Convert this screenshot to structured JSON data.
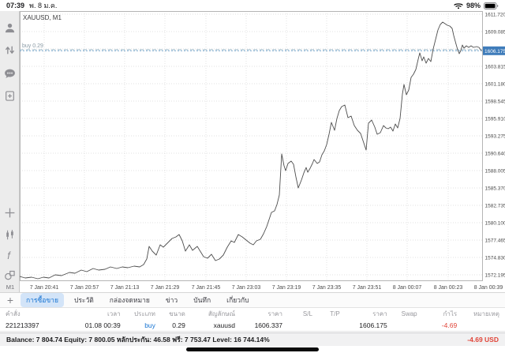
{
  "status_bar": {
    "time": "07:39",
    "date": "พ. 8 ม.ค.",
    "battery_percent": "98%"
  },
  "sidebar": {
    "top_icons": [
      "account-icon",
      "deals-arrows-icon",
      "chat-icon",
      "new-order-icon"
    ],
    "tool_icons": [
      "crosshair-icon",
      "candlestick-icon",
      "indicator-f-icon",
      "objects-icon"
    ],
    "timeframe_label": "M1"
  },
  "tab_bar": {
    "plus_glyph": "+",
    "tabs": [
      "การซื้อขาย",
      "ประวัติ",
      "กล่องจดหมาย",
      "ข่าว",
      "บันทึก",
      "เกี่ยวกับ"
    ],
    "selected_index": 0
  },
  "positions_table": {
    "headers": [
      "คำสั่ง",
      "เวลา",
      "ประเภท",
      "ขนาด",
      "สัญลักษณ์",
      "ราคา",
      "S/L",
      "T/P",
      "ราคา",
      "Swap",
      "กำไร",
      "หมายเหตุ"
    ],
    "rows": [
      [
        "221213397",
        "01.08 00:39",
        "buy",
        "0.29",
        "xauusd",
        "1606.337",
        "",
        "",
        "1606.175",
        "",
        "-4.69",
        ""
      ]
    ]
  },
  "account_bar": {
    "segments": [
      {
        "label": "Balance:",
        "value": "7 804.74"
      },
      {
        "label": "Equity:",
        "value": "7 800.05"
      },
      {
        "label": "หลักประกัน:",
        "value": "46.58"
      },
      {
        "label": "ฟรี:",
        "value": "7 753.47"
      },
      {
        "label": "Level:",
        "value": "16 744.14%"
      }
    ],
    "profit": "-4.69",
    "currency": "USD"
  },
  "chart_data": {
    "type": "line",
    "title": "XAUUSD, M1",
    "symbol": "XAUUSD",
    "timeframe": "M1",
    "ylim": [
      1571.24,
      1612.2
    ],
    "grid": true,
    "colors": {
      "line": "#4d4d4d",
      "grid": "#d8d8d8",
      "axis_text": "#4a4a4a",
      "price_badge": "#3f7cba",
      "buy_line": "#9fbccd",
      "current_line": "#74a3cc"
    },
    "current_price": {
      "value": 1606.175,
      "label": "1606.175"
    },
    "buy_line": {
      "price": 1606.337,
      "label": "buy 0.29"
    },
    "y_ticks": [
      {
        "v": 1611.72,
        "label": "1611.720"
      },
      {
        "v": 1609.085,
        "label": "1609.085"
      },
      {
        "v": 1606.45,
        "label": ""
      },
      {
        "v": 1603.815,
        "label": "1603.815"
      },
      {
        "v": 1601.18,
        "label": "1601.180"
      },
      {
        "v": 1598.545,
        "label": "1598.545"
      },
      {
        "v": 1595.91,
        "label": "1595.910"
      },
      {
        "v": 1593.275,
        "label": "1593.275"
      },
      {
        "v": 1590.64,
        "label": "1590.640"
      },
      {
        "v": 1588.005,
        "label": "1588.005"
      },
      {
        "v": 1585.37,
        "label": "1585.370"
      },
      {
        "v": 1582.735,
        "label": "1582.735"
      },
      {
        "v": 1580.1,
        "label": "1580.100"
      },
      {
        "v": 1577.465,
        "label": "1577.465"
      },
      {
        "v": 1574.83,
        "label": "1574.830"
      },
      {
        "v": 1572.195,
        "label": "1572.195"
      }
    ],
    "x_ticks": [
      {
        "f": 0.0528,
        "label": "7 Jan 20:41"
      },
      {
        "f": 0.1397,
        "label": "7 Jan 20:57"
      },
      {
        "f": 0.2266,
        "label": "7 Jan 21:13"
      },
      {
        "f": 0.3135,
        "label": "7 Jan 21:29"
      },
      {
        "f": 0.402,
        "label": "7 Jan 21:45"
      },
      {
        "f": 0.4889,
        "label": "7 Jan 23:03"
      },
      {
        "f": 0.5758,
        "label": "7 Jan 23:19"
      },
      {
        "f": 0.6627,
        "label": "7 Jan 23:35"
      },
      {
        "f": 0.7496,
        "label": "7 Jan 23:51"
      },
      {
        "f": 0.8365,
        "label": "8 Jan 00:07"
      },
      {
        "f": 0.925,
        "label": "8 Jan 00:23"
      },
      {
        "f": 1.0119,
        "label": "8 Jan 00:39"
      }
    ],
    "series": [
      {
        "name": "XAUUSD bid",
        "points": [
          [
            0.0,
            1571.96
          ],
          [
            0.0119,
            1571.72
          ],
          [
            0.0256,
            1571.84
          ],
          [
            0.0392,
            1571.6
          ],
          [
            0.0511,
            1571.84
          ],
          [
            0.063,
            1571.72
          ],
          [
            0.0767,
            1572.2
          ],
          [
            0.0903,
            1572.08
          ],
          [
            0.1073,
            1572.56
          ],
          [
            0.1193,
            1572.44
          ],
          [
            0.1329,
            1572.92
          ],
          [
            0.1448,
            1572.68
          ],
          [
            0.1584,
            1573.16
          ],
          [
            0.1704,
            1572.92
          ],
          [
            0.184,
            1573.04
          ],
          [
            0.1959,
            1573.4
          ],
          [
            0.2096,
            1573.16
          ],
          [
            0.2215,
            1573.4
          ],
          [
            0.2334,
            1573.28
          ],
          [
            0.247,
            1573.52
          ],
          [
            0.259,
            1573.4
          ],
          [
            0.2675,
            1573.76
          ],
          [
            0.2743,
            1574.59
          ],
          [
            0.2794,
            1576.51
          ],
          [
            0.2862,
            1575.79
          ],
          [
            0.2947,
            1575.19
          ],
          [
            0.3032,
            1576.75
          ],
          [
            0.31,
            1576.39
          ],
          [
            0.3185,
            1576.99
          ],
          [
            0.3288,
            1577.71
          ],
          [
            0.3373,
            1577.95
          ],
          [
            0.3441,
            1578.31
          ],
          [
            0.3509,
            1577.35
          ],
          [
            0.3577,
            1575.79
          ],
          [
            0.3663,
            1576.75
          ],
          [
            0.3731,
            1575.91
          ],
          [
            0.3833,
            1576.51
          ],
          [
            0.3969,
            1574.95
          ],
          [
            0.4054,
            1574.71
          ],
          [
            0.4139,
            1575.31
          ],
          [
            0.4225,
            1574.35
          ],
          [
            0.431,
            1574.59
          ],
          [
            0.4395,
            1575.19
          ],
          [
            0.448,
            1576.39
          ],
          [
            0.4565,
            1577.35
          ],
          [
            0.4634,
            1577.11
          ],
          [
            0.4719,
            1578.31
          ],
          [
            0.4804,
            1577.95
          ],
          [
            0.4889,
            1577.47
          ],
          [
            0.4974,
            1576.99
          ],
          [
            0.5043,
            1576.75
          ],
          [
            0.5111,
            1577.35
          ],
          [
            0.5196,
            1577.59
          ],
          [
            0.5264,
            1578.43
          ],
          [
            0.5332,
            1579.51
          ],
          [
            0.5383,
            1580.58
          ],
          [
            0.5434,
            1581.66
          ],
          [
            0.5502,
            1581.9
          ],
          [
            0.5553,
            1582.86
          ],
          [
            0.5605,
            1584.3
          ],
          [
            0.5656,
            1590.52
          ],
          [
            0.5707,
            1588.72
          ],
          [
            0.5741,
            1588.0
          ],
          [
            0.5792,
            1589.08
          ],
          [
            0.586,
            1589.44
          ],
          [
            0.5911,
            1588.96
          ],
          [
            0.5963,
            1587.05
          ],
          [
            0.6014,
            1585.37
          ],
          [
            0.6082,
            1586.57
          ],
          [
            0.6133,
            1587.64
          ],
          [
            0.6184,
            1588.48
          ],
          [
            0.6218,
            1587.76
          ],
          [
            0.6269,
            1588.36
          ],
          [
            0.632,
            1589.08
          ],
          [
            0.6354,
            1589.68
          ],
          [
            0.6422,
            1589.08
          ],
          [
            0.6474,
            1589.32
          ],
          [
            0.6525,
            1590.4
          ],
          [
            0.6576,
            1591.0
          ],
          [
            0.6627,
            1591.96
          ],
          [
            0.6678,
            1593.52
          ],
          [
            0.6729,
            1595.31
          ],
          [
            0.6797,
            1594.12
          ],
          [
            0.6848,
            1595.91
          ],
          [
            0.6899,
            1597.11
          ],
          [
            0.695,
            1597.71
          ],
          [
            0.7019,
            1597.95
          ],
          [
            0.7087,
            1596.03
          ],
          [
            0.7155,
            1596.27
          ],
          [
            0.7223,
            1594.83
          ],
          [
            0.7291,
            1594.12
          ],
          [
            0.7359,
            1593.64
          ],
          [
            0.7428,
            1592.2
          ],
          [
            0.7479,
            1591.12
          ],
          [
            0.753,
            1595.19
          ],
          [
            0.7598,
            1595.67
          ],
          [
            0.7666,
            1594.59
          ],
          [
            0.7717,
            1593.52
          ],
          [
            0.7785,
            1593.76
          ],
          [
            0.7853,
            1594.83
          ],
          [
            0.7904,
            1594.47
          ],
          [
            0.7955,
            1594.35
          ],
          [
            0.8007,
            1594.59
          ],
          [
            0.8058,
            1593.99
          ],
          [
            0.8109,
            1595.07
          ],
          [
            0.816,
            1594.47
          ],
          [
            0.8211,
            1595.91
          ],
          [
            0.8262,
            1599.62
          ],
          [
            0.8296,
            1601.06
          ],
          [
            0.8348,
            1599.5
          ],
          [
            0.8399,
            1600.22
          ],
          [
            0.845,
            1602.14
          ],
          [
            0.8501,
            1602.62
          ],
          [
            0.8552,
            1603.34
          ],
          [
            0.8603,
            1604.89
          ],
          [
            0.8637,
            1605.85
          ],
          [
            0.8688,
            1604.65
          ],
          [
            0.8722,
            1605.25
          ],
          [
            0.8773,
            1604.29
          ],
          [
            0.8824,
            1605.01
          ],
          [
            0.8875,
            1604.53
          ],
          [
            0.8926,
            1606.45
          ],
          [
            0.8978,
            1607.89
          ],
          [
            0.9029,
            1609.32
          ],
          [
            0.908,
            1610.16
          ],
          [
            0.9131,
            1610.52
          ],
          [
            0.9182,
            1610.28
          ],
          [
            0.9233,
            1610.04
          ],
          [
            0.9284,
            1609.92
          ],
          [
            0.9335,
            1609.56
          ],
          [
            0.9369,
            1608.49
          ],
          [
            0.942,
            1607.17
          ],
          [
            0.9455,
            1606.33
          ],
          [
            0.9489,
            1605.73
          ],
          [
            0.9523,
            1606.21
          ],
          [
            0.9557,
            1607.05
          ],
          [
            0.9591,
            1606.57
          ],
          [
            0.9642,
            1606.93
          ],
          [
            0.9693,
            1606.69
          ],
          [
            0.9744,
            1606.93
          ],
          [
            0.9795,
            1606.69
          ],
          [
            0.9863,
            1606.81
          ],
          [
            0.9914,
            1606.69
          ],
          [
            0.9966,
            1606.18
          ]
        ]
      }
    ]
  }
}
